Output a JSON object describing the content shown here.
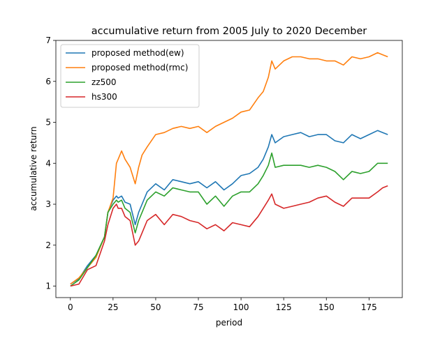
{
  "chart_data": {
    "type": "line",
    "title": "accumulative return from 2005 July to 2020 December",
    "xlabel": "period",
    "ylabel": "accumulative return",
    "xlim": [
      -8.5,
      194.5
    ],
    "ylim": [
      0.72,
      7.0
    ],
    "xticks": [
      0,
      25,
      50,
      75,
      100,
      125,
      150,
      175
    ],
    "yticks": [
      1,
      2,
      3,
      4,
      5,
      6,
      7
    ],
    "grid": false,
    "legend_position": "upper-left",
    "x": [
      0,
      5,
      10,
      15,
      20,
      22,
      25,
      27,
      28,
      30,
      32,
      35,
      38,
      40,
      42,
      45,
      50,
      55,
      60,
      65,
      70,
      75,
      80,
      85,
      90,
      95,
      100,
      105,
      110,
      113,
      116,
      118,
      120,
      125,
      130,
      135,
      140,
      145,
      150,
      155,
      160,
      165,
      170,
      175,
      180,
      183,
      186
    ],
    "series": [
      {
        "name": "proposed method(ew)",
        "color": "#1f77b4",
        "values": [
          1.05,
          1.18,
          1.5,
          1.75,
          2.2,
          2.8,
          3.1,
          3.2,
          3.15,
          3.2,
          3.05,
          3.0,
          2.5,
          2.8,
          3.0,
          3.3,
          3.5,
          3.35,
          3.6,
          3.55,
          3.5,
          3.55,
          3.4,
          3.55,
          3.35,
          3.5,
          3.7,
          3.75,
          3.9,
          4.1,
          4.4,
          4.7,
          4.5,
          4.65,
          4.7,
          4.75,
          4.65,
          4.7,
          4.7,
          4.55,
          4.5,
          4.7,
          4.6,
          4.7,
          4.8,
          4.75,
          4.7
        ]
      },
      {
        "name": "proposed method(rmc)",
        "color": "#ff7f0e",
        "values": [
          1.05,
          1.2,
          1.45,
          1.7,
          2.2,
          2.8,
          3.15,
          4.0,
          4.1,
          4.3,
          4.1,
          3.9,
          3.5,
          3.9,
          4.2,
          4.4,
          4.7,
          4.75,
          4.85,
          4.9,
          4.85,
          4.9,
          4.75,
          4.9,
          5.0,
          5.1,
          5.25,
          5.3,
          5.6,
          5.75,
          6.1,
          6.5,
          6.3,
          6.5,
          6.6,
          6.6,
          6.55,
          6.55,
          6.5,
          6.5,
          6.4,
          6.6,
          6.55,
          6.6,
          6.7,
          6.65,
          6.6
        ]
      },
      {
        "name": "zz500",
        "color": "#2ca02c",
        "values": [
          1.0,
          1.15,
          1.45,
          1.75,
          2.2,
          2.8,
          3.0,
          3.1,
          3.05,
          3.1,
          2.9,
          2.8,
          2.3,
          2.6,
          2.8,
          3.1,
          3.3,
          3.2,
          3.4,
          3.35,
          3.3,
          3.3,
          3.0,
          3.2,
          2.95,
          3.2,
          3.3,
          3.3,
          3.5,
          3.7,
          3.95,
          4.25,
          3.9,
          3.95,
          3.95,
          3.95,
          3.9,
          3.95,
          3.9,
          3.8,
          3.6,
          3.8,
          3.75,
          3.8,
          4.0,
          4.0,
          4.0
        ]
      },
      {
        "name": "hs300",
        "color": "#d62728",
        "values": [
          1.0,
          1.05,
          1.4,
          1.5,
          2.1,
          2.5,
          2.9,
          3.0,
          2.9,
          2.9,
          2.7,
          2.6,
          2.0,
          2.1,
          2.3,
          2.6,
          2.75,
          2.5,
          2.75,
          2.7,
          2.6,
          2.55,
          2.4,
          2.5,
          2.35,
          2.55,
          2.5,
          2.45,
          2.7,
          2.9,
          3.1,
          3.25,
          3.0,
          2.9,
          2.95,
          3.0,
          3.05,
          3.15,
          3.2,
          3.05,
          2.95,
          3.15,
          3.15,
          3.15,
          3.3,
          3.4,
          3.45
        ]
      }
    ]
  }
}
